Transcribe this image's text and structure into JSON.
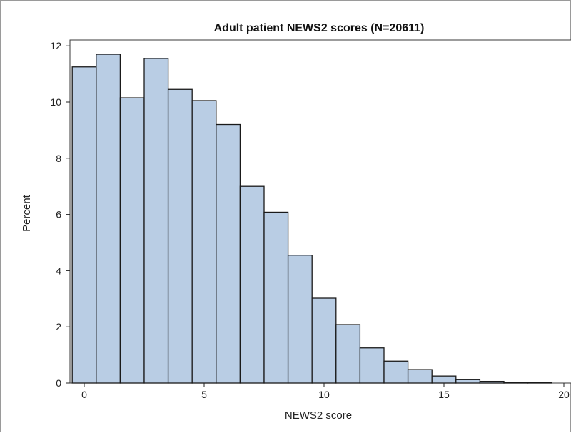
{
  "chart_data": {
    "type": "bar",
    "title": "Adult patient NEWS2 scores (N=20611)",
    "xlabel": "NEWS2 score",
    "ylabel": "Percent",
    "xlim": [
      -0.5,
      20.0
    ],
    "ylim": [
      0,
      12.2
    ],
    "xticks": [
      0,
      5,
      10,
      15,
      20
    ],
    "yticks": [
      0,
      2,
      4,
      6,
      8,
      10,
      12
    ],
    "grid": false,
    "legend": "none",
    "bar_color": "#b9cde4",
    "categories": [
      0,
      1,
      2,
      3,
      4,
      5,
      6,
      7,
      8,
      9,
      10,
      11,
      12,
      13,
      14,
      15,
      16,
      17,
      18,
      19
    ],
    "values": [
      11.25,
      11.7,
      10.15,
      11.55,
      10.45,
      10.05,
      9.2,
      7.0,
      6.08,
      4.55,
      3.02,
      2.08,
      1.25,
      0.78,
      0.48,
      0.25,
      0.12,
      0.06,
      0.03,
      0.02
    ]
  }
}
